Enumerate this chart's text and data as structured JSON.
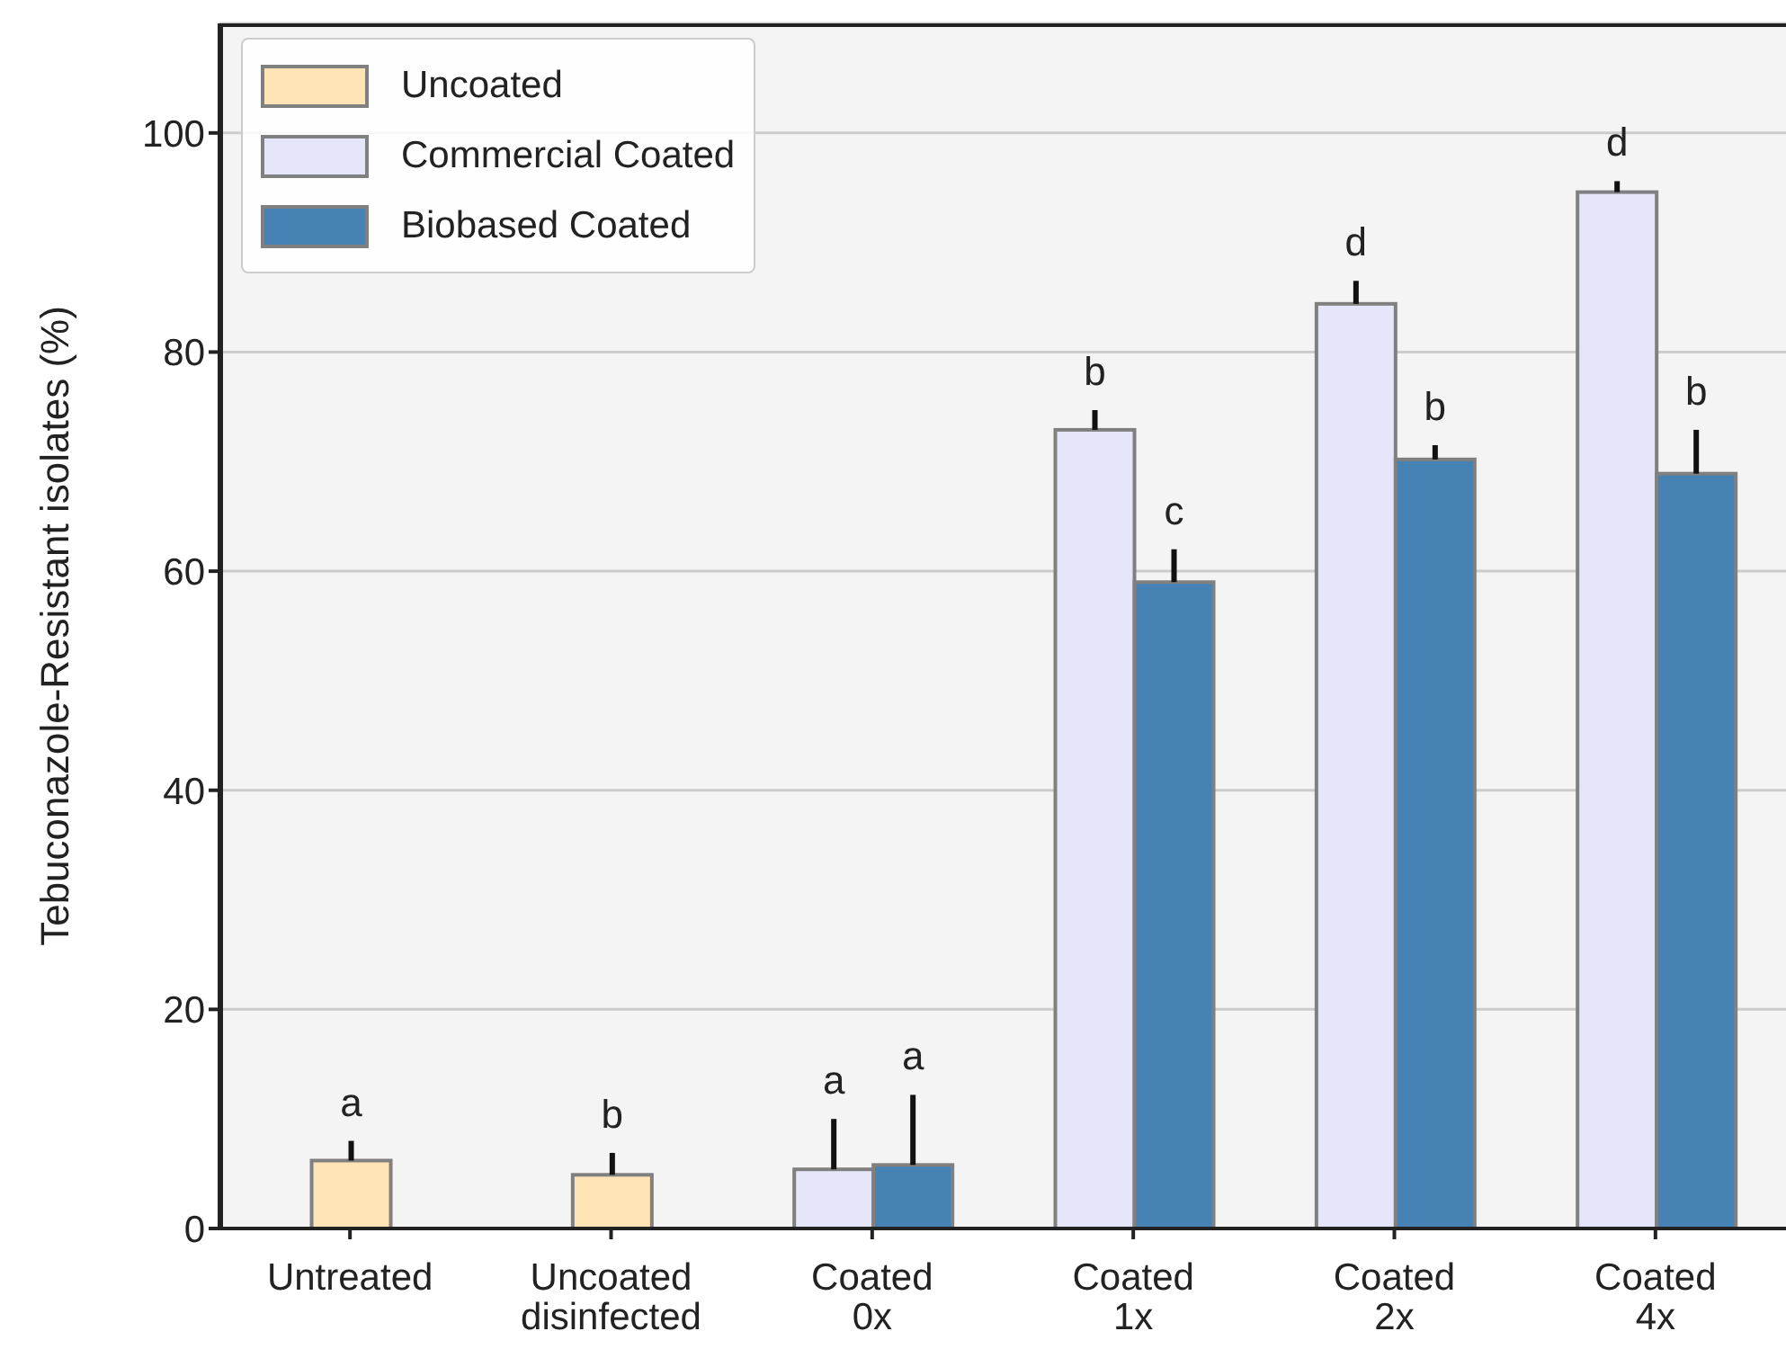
{
  "chart_data": {
    "type": "bar",
    "ylabel": "Tebuconazole-Resistant isolates (%)",
    "categories": [
      "Untreated",
      "Uncoated disinfected",
      "Coated 0x",
      "Coated 1x",
      "Coated 2x",
      "Coated 4x"
    ],
    "series": [
      {
        "name": "Uncoated",
        "color": "#ffe4b5",
        "values": [
          6.2,
          4.9,
          null,
          null,
          null,
          null
        ],
        "errors": [
          [
            6.2,
            8
          ],
          [
            4.9,
            6.9
          ],
          null,
          null,
          null,
          null
        ],
        "value_labels": [
          "a",
          "b",
          null,
          null,
          null,
          null
        ]
      },
      {
        "name": "Commercial Coated",
        "color": "#e6e6fa",
        "values": [
          null,
          null,
          5.4,
          72.9,
          84.4,
          94.6
        ],
        "errors": [
          null,
          null,
          [
            5.4,
            10
          ],
          [
            72.9,
            74.7
          ],
          [
            84.4,
            86.5
          ],
          [
            94.6,
            95.6
          ]
        ],
        "value_labels": [
          null,
          null,
          "a",
          "b",
          "d",
          "d"
        ]
      },
      {
        "name": "Biobased Coated",
        "color": "#4682b4",
        "values": [
          null,
          null,
          5.8,
          59,
          70.2,
          68.9
        ],
        "errors": [
          null,
          null,
          [
            5.8,
            12.2
          ],
          [
            59,
            62
          ],
          [
            70.2,
            71.5
          ],
          [
            68.9,
            72.9
          ]
        ],
        "value_labels": [
          null,
          null,
          "a",
          "c",
          "b",
          "b"
        ]
      }
    ],
    "ylim": [
      0,
      110
    ],
    "yticks": [
      0,
      20,
      40,
      60,
      80,
      100
    ],
    "grid": "y",
    "legend": "top left"
  }
}
